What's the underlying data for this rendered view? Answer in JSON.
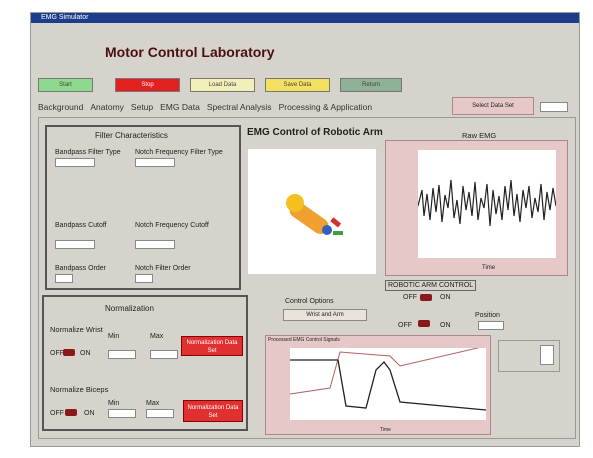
{
  "window": {
    "title": "EMG Simulator"
  },
  "header": {
    "title": "Motor Control Laboratory"
  },
  "buttons": [
    "Start",
    "Stop",
    "Load Data",
    "Save Data",
    "Return"
  ],
  "tabs": [
    "Background",
    "Anatomy",
    "Setup",
    "EMG Data",
    "Spectral Analysis",
    "Processing & Application"
  ],
  "select_button": "Select Data Set",
  "filter_panel": {
    "title": "Filter Characteristics",
    "fields": [
      "Bandpass Filter Type",
      "Notch Frequency Filter Type",
      "Bandpass Cutoff",
      "Notch Frequency Cutoff",
      "Bandpass Order",
      "Notch Filter Order"
    ]
  },
  "normalization_panel": {
    "title": "Normalization",
    "wrist": "Normalize Wrist",
    "biceps": "Normalize Biceps",
    "off": "OFF",
    "on": "ON",
    "min": "Min",
    "max": "Max",
    "button": "Normalization Data Set"
  },
  "robot_panel": {
    "title": "EMG Control of Robotic Arm"
  },
  "raw_chart": {
    "title": "Raw EMG",
    "x_label": "Time"
  },
  "control": {
    "label": "Control Options",
    "option": "Wrist and Arm",
    "arm_control": "ROBOTIC ARM CONTROL",
    "off": "OFF",
    "on": "ON",
    "position": "Position"
  },
  "lower_chart": {
    "title": "Processed EMG Control Signals",
    "x_label": "Time"
  }
}
